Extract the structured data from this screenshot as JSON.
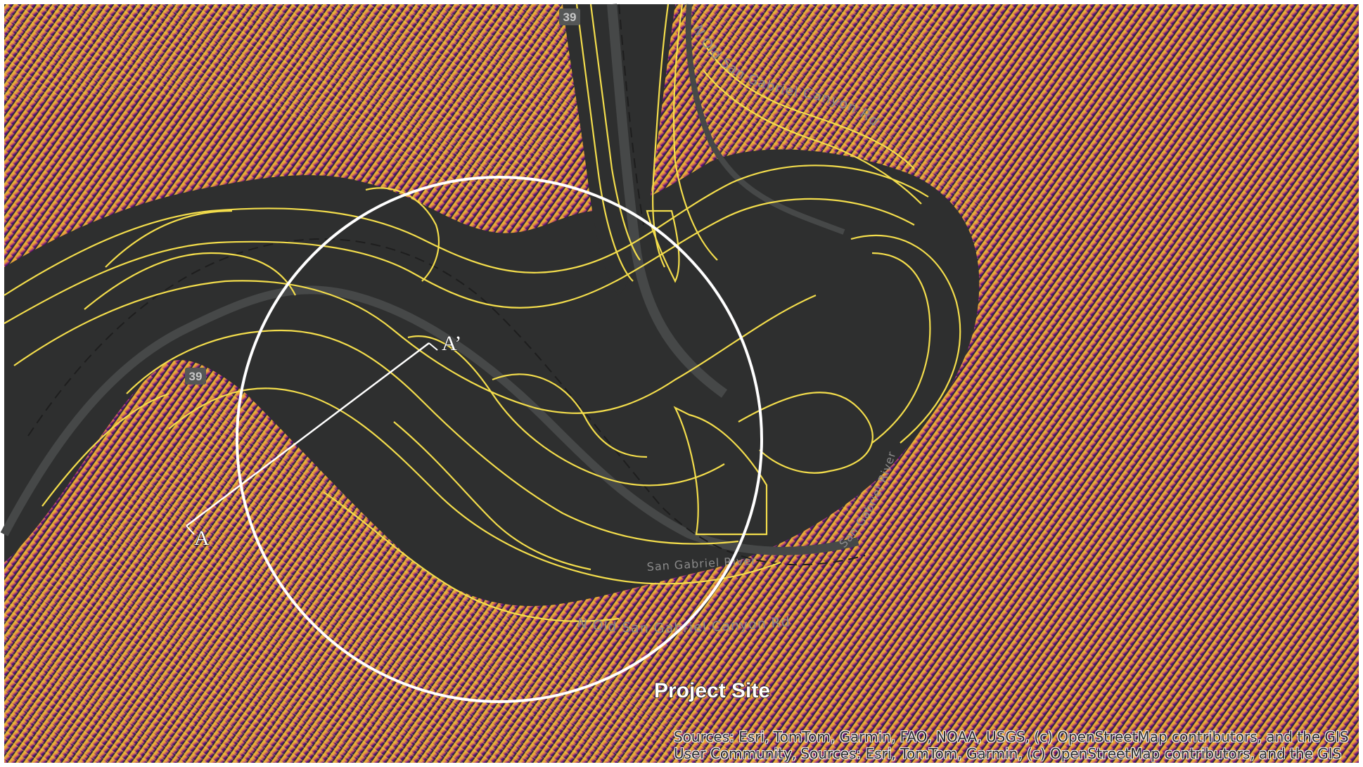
{
  "map": {
    "roads": {
      "north_road": "N Old San Gabriel Canyon Rd",
      "south_road": "N Old San Gabriel Canyon Rd",
      "river_center": "San Gabriel River",
      "river_east": "San Gabriel River"
    },
    "shields": {
      "top": "39",
      "left": "39"
    },
    "section_line": {
      "start_label": "A",
      "end_label": "A’"
    },
    "site_label": "Project Site",
    "attribution": {
      "line1": "Sources: Esri, TomTom, Garmin, FAO, NOAA, USGS, (c) OpenStreetMap contributors, and the GIS",
      "line2": "User Community, Sources: Esri, TomTom, Garmin, (c) OpenStreetMap contributors, and the GIS"
    },
    "colors": {
      "basemap": "#2e2f2f",
      "contour_low": "#f2e04e",
      "contour_high": "#5a0f7a",
      "outline": "#ffffff"
    }
  }
}
